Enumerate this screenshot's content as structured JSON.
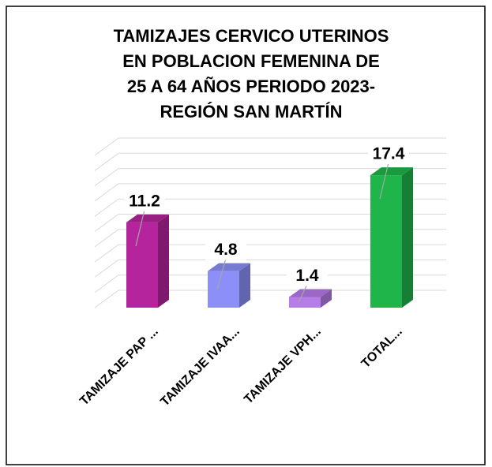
{
  "chart_data": {
    "type": "bar3d",
    "title": [
      "TAMIZAJES CERVICO UTERINOS",
      "EN POBLACION FEMENINA DE",
      "25 A 64 AÑOS  PERIODO 2023-",
      "REGIÓN SAN MARTÍN"
    ],
    "categories": [
      "TAMIZAJE PAP ...",
      "TAMIZAJE IVAA...",
      "TAMIZAJE VPH...",
      "TOTAL..."
    ],
    "values": [
      11.2,
      4.8,
      1.4,
      17.4
    ],
    "colors": [
      "#b5249c",
      "#8c8ff7",
      "#b67ce8",
      "#1fb54a"
    ],
    "ylim": [
      0,
      20
    ],
    "yticks": [
      0,
      2,
      4,
      6,
      8,
      10,
      12,
      14,
      16,
      18,
      20
    ],
    "grid": true
  }
}
